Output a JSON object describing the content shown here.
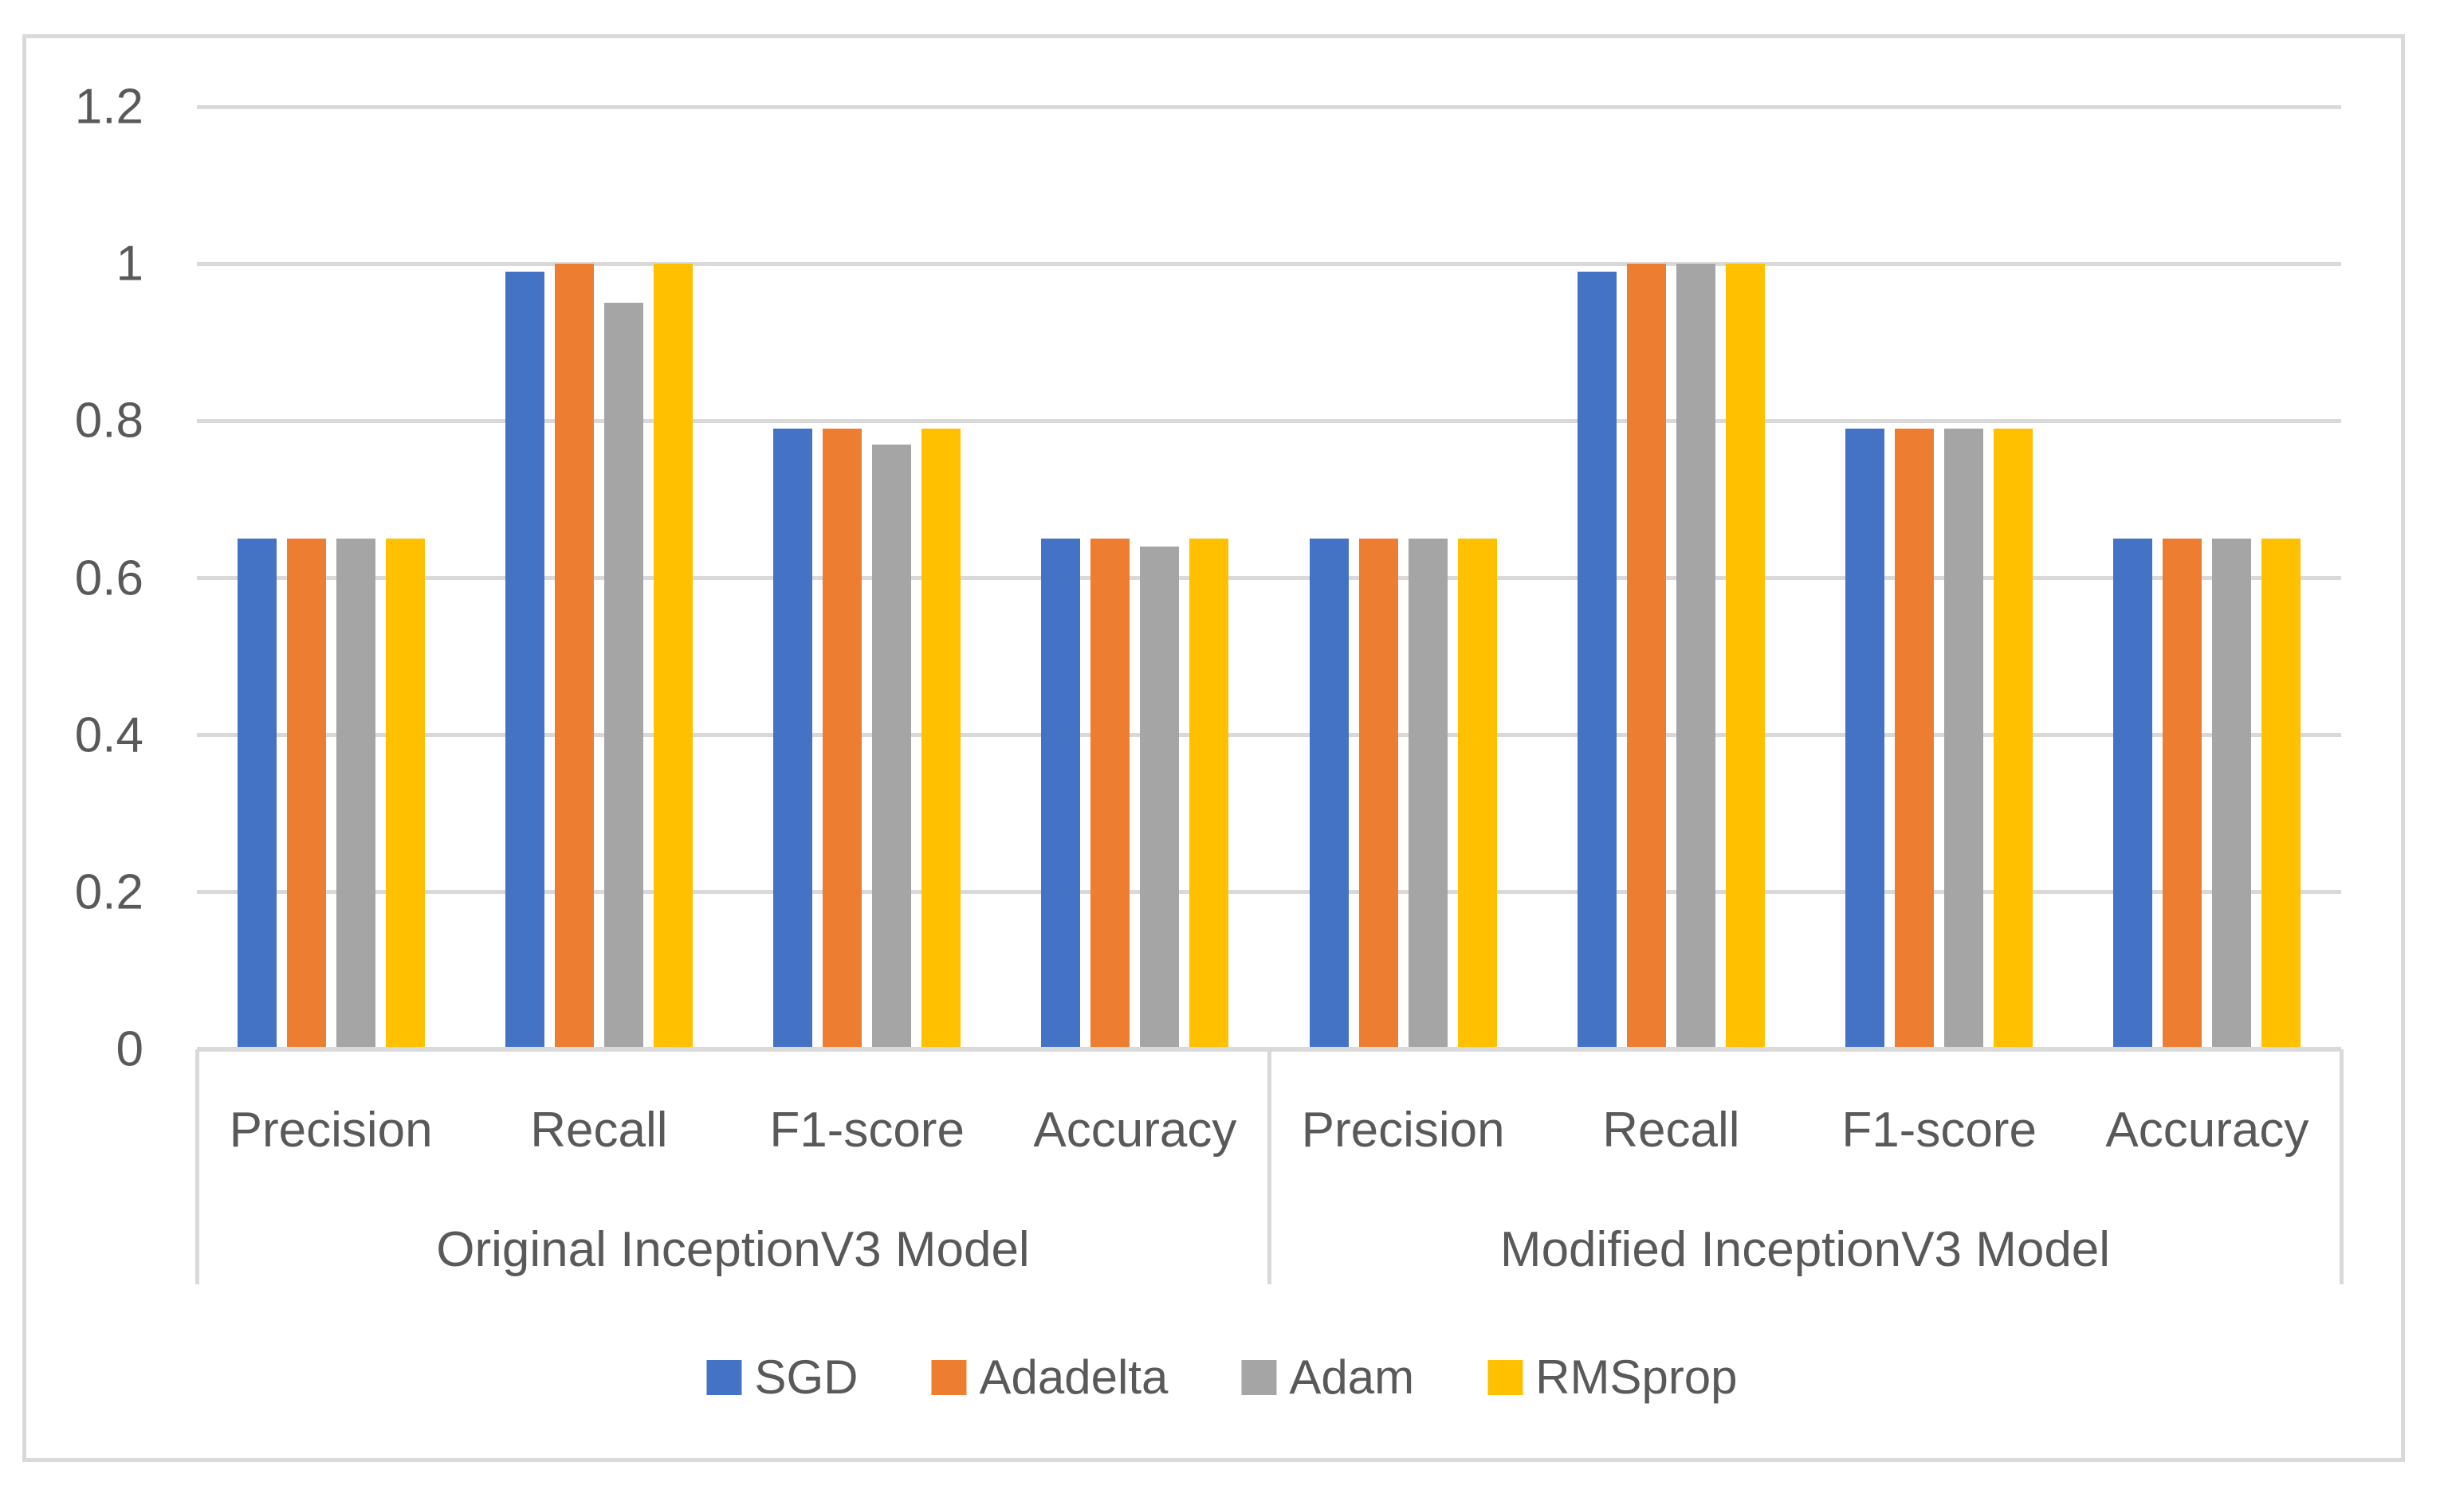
{
  "figure": {
    "background_color": "#ffffff",
    "border_color": "#d9d9d9",
    "gridline_color": "#d9d9d9",
    "text_color": "#595959"
  },
  "chart_data": {
    "type": "bar",
    "title": "",
    "xlabel": "",
    "ylabel": "",
    "ylim": [
      0,
      1.2
    ],
    "grid": true,
    "legend_position": "bottom",
    "ytick_labels": [
      "0",
      "0.2",
      "0.4",
      "0.6",
      "0.8",
      "1",
      "1.2"
    ],
    "ytick_values": [
      0,
      0.2,
      0.4,
      0.6,
      0.8,
      1,
      1.2
    ],
    "categories": [
      "Precision",
      "Recall",
      "F1-score",
      "Accuracy"
    ],
    "groups": [
      {
        "key": "original",
        "label": "Original InceptionV3 Model"
      },
      {
        "key": "modified",
        "label": "Modified InceptionV3 Model"
      }
    ],
    "series": [
      {
        "name": "SGD",
        "color": "#4472C4",
        "values": {
          "original": [
            0.65,
            0.99,
            0.79,
            0.65
          ],
          "modified": [
            0.65,
            0.99,
            0.79,
            0.65
          ]
        }
      },
      {
        "name": "Adadelta",
        "color": "#ED7D31",
        "values": {
          "original": [
            0.65,
            1.0,
            0.79,
            0.65
          ],
          "modified": [
            0.65,
            1.0,
            0.79,
            0.65
          ]
        }
      },
      {
        "name": "Adam",
        "color": "#A5A5A5",
        "values": {
          "original": [
            0.65,
            0.95,
            0.77,
            0.64
          ],
          "modified": [
            0.65,
            1.0,
            0.79,
            0.65
          ]
        }
      },
      {
        "name": "RMSprop",
        "color": "#FFC000",
        "values": {
          "original": [
            0.65,
            1.0,
            0.79,
            0.65
          ],
          "modified": [
            0.65,
            1.0,
            0.79,
            0.65
          ]
        }
      }
    ],
    "legend": [
      "SGD",
      "Adadelta",
      "Adam",
      "RMSprop"
    ]
  }
}
